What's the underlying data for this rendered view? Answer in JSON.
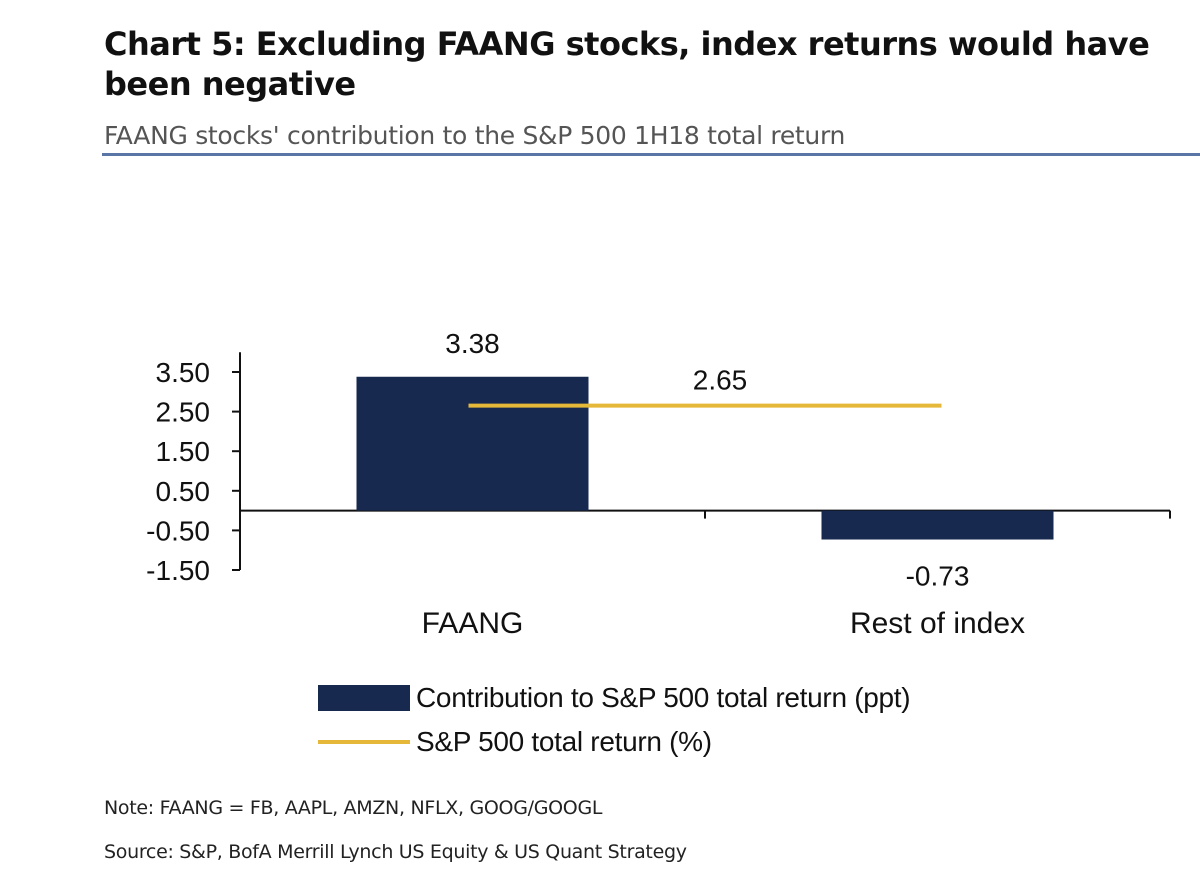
{
  "chart_data": {
    "type": "bar",
    "title": "Chart 5: Excluding FAANG stocks, index returns would have been negative",
    "subtitle": "FAANG stocks' contribution to the S&P 500 1H18 total return",
    "categories": [
      "FAANG",
      "Rest of index"
    ],
    "series": [
      {
        "name": "Contribution to S&P 500 total return (ppt)",
        "type": "bar",
        "values": [
          3.38,
          -0.73
        ],
        "color": "#17294e"
      },
      {
        "name": "S&P 500 total return (%)",
        "type": "line",
        "values": [
          2.65,
          2.65
        ],
        "color": "#e6b83a"
      }
    ],
    "data_labels": [
      "3.38",
      "-0.73",
      "2.65"
    ],
    "yticks": [
      3.5,
      2.5,
      1.5,
      0.5,
      -0.5,
      -1.5
    ],
    "ytick_labels": [
      "3.50",
      "2.50",
      "1.50",
      "0.50",
      "-0.50",
      "-1.50"
    ],
    "ylim": [
      -1.5,
      4.0
    ],
    "grid": false,
    "legend_position": "bottom"
  },
  "note": "Note: FAANG = FB, AAPL, AMZN, NFLX, GOOG/GOOGL",
  "source": "Source: S&P, BofA Merrill Lynch US Equity & US Quant Strategy"
}
